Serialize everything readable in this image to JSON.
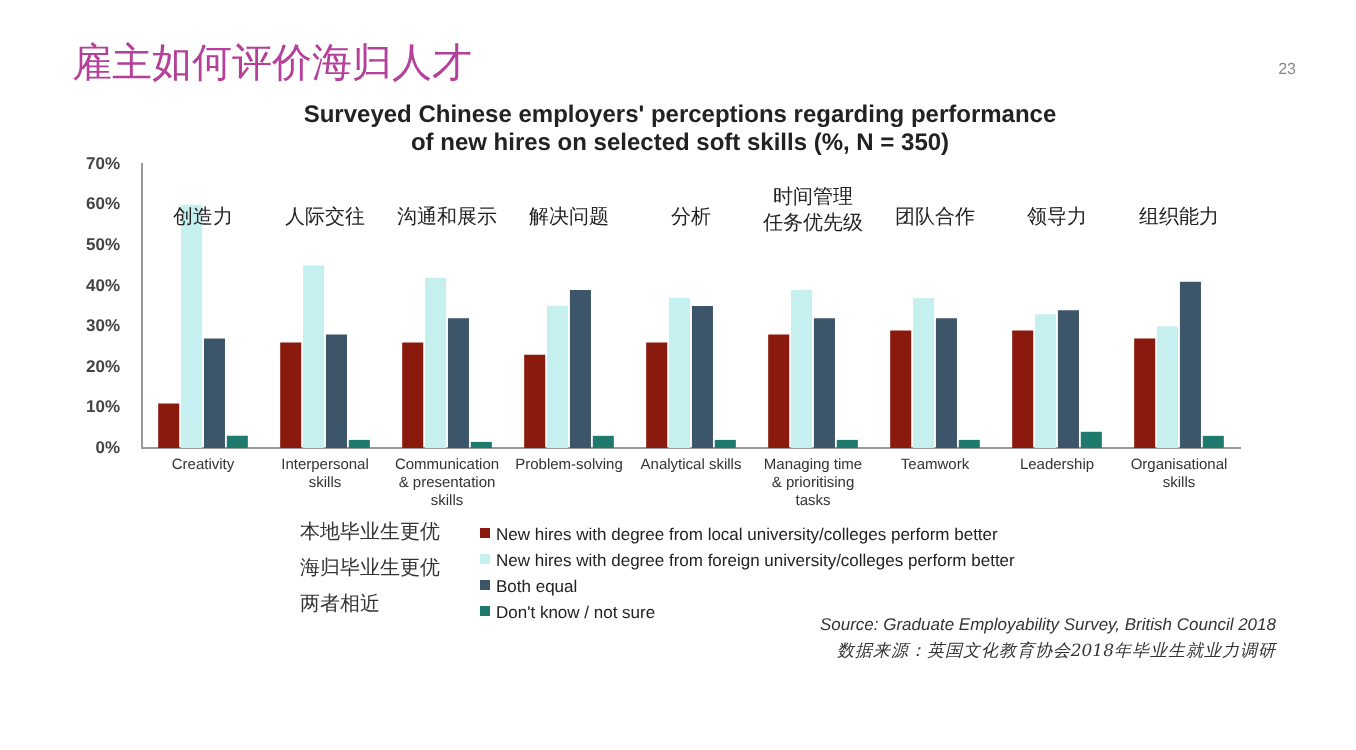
{
  "chart_data": {
    "type": "bar",
    "title": "雇主如何评价海归人才",
    "subtitle": "Surveyed Chinese employers' perceptions regarding performance\nof new hires on selected soft skills (%, N = 350)",
    "categories": [
      "Creativity",
      "Interpersonal\nskills",
      "Communication\n& presentation\nskills",
      "Problem-solving",
      "Analytical skills",
      "Managing time\n& prioritising\ntasks",
      "Teamwork",
      "Leadership",
      "Organisational\nskills"
    ],
    "series": [
      {
        "name": "New hires with degree from local university/colleges perform better",
        "color": "#8b1a0e",
        "values": [
          11,
          26,
          26,
          23,
          26,
          28,
          29,
          29,
          27
        ]
      },
      {
        "name": "New hires with degree from foreign university/colleges perform better",
        "color": "#c5f0ef",
        "values": [
          60,
          45,
          42,
          35,
          37,
          39,
          37,
          33,
          30
        ]
      },
      {
        "name": "Both equal",
        "color": "#3d5569",
        "values": [
          27,
          28,
          32,
          39,
          35,
          32,
          32,
          34,
          41
        ]
      },
      {
        "name": "Don't know / not sure",
        "color": "#1f7a6e",
        "values": [
          3,
          2,
          1.5,
          3,
          2,
          2,
          2,
          4,
          3
        ]
      }
    ],
    "ylim": [
      0,
      70
    ],
    "yticks": [
      {
        "value": 0,
        "label": "0%"
      },
      {
        "value": 10,
        "label": "10%"
      },
      {
        "value": 20,
        "label": "20%"
      },
      {
        "value": 30,
        "label": "30%"
      },
      {
        "value": 40,
        "label": "40%"
      },
      {
        "value": 50,
        "label": "50%"
      },
      {
        "value": 60,
        "label": "60%"
      },
      {
        "value": 70,
        "label": "70%"
      }
    ],
    "grid": false,
    "legend": "bottom",
    "annotations": [
      "创造力",
      "人际交往",
      "沟通和展示",
      "解决问题",
      "分析",
      "时间管理",
      "任务优先级",
      "团队合作",
      "领导力",
      "组织能力",
      "23",
      "本地毕业生更优",
      "海归毕业生更优",
      "两者相近",
      "Source: Graduate Employability Survey, British Council 2018",
      "数据来源：英国文化教育协会2018年毕业生就业力调研"
    ]
  }
}
